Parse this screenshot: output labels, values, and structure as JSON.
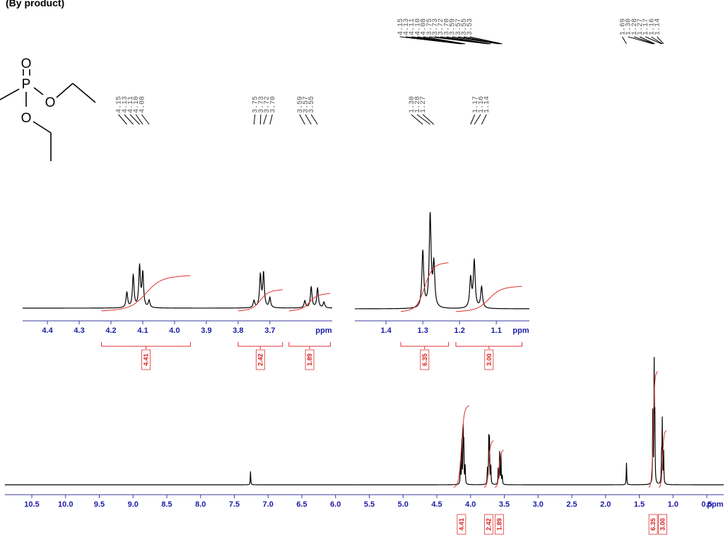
{
  "title": "(By product)",
  "structure": {
    "atoms": [
      "O",
      "P",
      "O",
      "O"
    ]
  },
  "chart_data": [
    {
      "type": "nmr",
      "xlabel": "ppm",
      "xlim": [
        10.9,
        0.25
      ],
      "ylim": [
        0,
        180
      ],
      "xticks": [
        10.5,
        {
          "value": 10,
          "label": "10.0"
        },
        9.5,
        {
          "value": 9,
          "label": "9.0"
        },
        8.5,
        {
          "value": 8,
          "label": "8.0"
        },
        7.5,
        {
          "value": 7,
          "label": "7.0"
        },
        6.5,
        {
          "value": 6,
          "label": "6.0"
        },
        5.5,
        {
          "value": 5,
          "label": "5.0"
        },
        4.5,
        {
          "value": 4,
          "label": "4.0"
        },
        3.5,
        {
          "value": 3,
          "label": "3.0"
        },
        2.5,
        {
          "value": 2,
          "label": "2.0"
        },
        1.5,
        {
          "value": 1,
          "label": "1.0"
        },
        0.5
      ],
      "peaks": {
        "x": [
          7.26,
          4.15,
          4.13,
          4.11,
          4.1,
          4.08,
          3.75,
          3.73,
          3.72,
          3.7,
          3.59,
          3.57,
          3.55,
          3.53,
          1.69,
          1.3,
          1.28,
          1.27,
          1.17,
          1.16,
          1.14
        ],
        "heights": [
          19,
          30,
          60,
          75,
          55,
          25,
          22,
          62,
          60,
          25,
          22,
          45,
          42,
          12,
          31,
          100,
          165,
          85,
          40,
          89,
          45
        ]
      },
      "peak_labels": [
        [
          {
            "value": 4.15,
            "label": "4.15"
          },
          {
            "value": 4.13,
            "label": "4.13"
          },
          {
            "value": 4.11,
            "label": "4.11"
          },
          {
            "value": 4.1,
            "label": "4.10"
          },
          {
            "value": 4.08,
            "label": "4.08"
          },
          {
            "value": 3.75,
            "label": "3.75"
          },
          {
            "value": 3.73,
            "label": "3.73"
          },
          {
            "value": 3.72,
            "label": "3.72"
          },
          {
            "value": 3.7,
            "label": "3.70"
          },
          {
            "value": 3.59,
            "label": "3.59"
          },
          {
            "value": 3.57,
            "label": "3.57"
          },
          {
            "value": 3.55,
            "label": "3.55"
          },
          {
            "value": 3.53,
            "label": "3.53"
          }
        ],
        [
          {
            "value": 1.69,
            "label": "1.69"
          },
          {
            "value": 1.3,
            "label": "1.30"
          },
          {
            "value": 1.28,
            "label": "1.28"
          },
          {
            "value": 1.27,
            "label": "1.27"
          },
          {
            "value": 1.17,
            "label": "1.17"
          },
          {
            "value": 1.16,
            "label": "1.16"
          },
          {
            "value": 1.14,
            "label": "1.14"
          }
        ]
      ],
      "integrals": {
        "from": [
          4.25,
          3.8,
          3.64,
          1.36,
          1.21
        ],
        "to": [
          4.02,
          3.66,
          3.51,
          1.23,
          1.1
        ],
        "values": [
          4.41,
          2.42,
          1.89,
          6.35,
          3.0
        ],
        "value_labels": [
          "4.41",
          "2.42",
          "1.89",
          "6.35",
          "3.00"
        ]
      }
    },
    {
      "type": "nmr",
      "xlabel": "ppm",
      "xlim": [
        4.478,
        3.504
      ],
      "ylim": [
        0,
        150
      ],
      "xticks": [
        4.4,
        4.3,
        4.2,
        4.1,
        {
          "value": 4,
          "label": "4.0"
        },
        3.9,
        3.8,
        3.7
      ],
      "peaks": {
        "x": [
          4.15,
          4.13,
          4.11,
          4.1,
          4.08,
          3.75,
          3.73,
          3.72,
          3.7,
          3.59,
          3.57,
          3.55,
          3.53
        ],
        "heights": [
          22,
          46,
          58,
          48,
          10,
          10,
          46,
          48,
          14,
          10,
          30,
          28,
          8
        ]
      },
      "peak_labels": [
        [
          {
            "value": 4.15,
            "label": "4.15"
          },
          {
            "value": 4.13,
            "label": "4.13"
          },
          {
            "value": 4.11,
            "label": "4.11"
          },
          {
            "value": 4.1,
            "label": "4.10"
          },
          {
            "value": 4.08,
            "label": "4.08"
          }
        ],
        [
          {
            "value": 3.75,
            "label": "3.75"
          },
          {
            "value": 3.73,
            "label": "3.73"
          },
          {
            "value": 3.72,
            "label": "3.72"
          },
          {
            "value": 3.7,
            "label": "3.70"
          }
        ],
        [
          {
            "value": 3.59,
            "label": "3.59"
          },
          {
            "value": 3.57,
            "label": "3.57"
          },
          {
            "value": 3.55,
            "label": "3.55"
          }
        ]
      ],
      "integrals": {
        "from": [
          4.23,
          3.8,
          3.64
        ],
        "to": [
          3.95,
          3.66,
          3.51
        ],
        "values": [
          4.41,
          2.42,
          1.89
        ],
        "value_labels": [
          "4.41",
          "2.42",
          "1.89"
        ]
      }
    },
    {
      "type": "nmr",
      "xlabel": "ppm",
      "xlim": [
        1.485,
        1.01
      ],
      "ylim": [
        0,
        150
      ],
      "xticks": [
        1.4,
        1.3,
        1.2,
        1.1
      ],
      "peaks": {
        "x": [
          1.3,
          1.28,
          1.27,
          1.17,
          1.16,
          1.14
        ],
        "heights": [
          80,
          130,
          60,
          42,
          66,
          30
        ]
      },
      "peak_labels": [
        [
          {
            "value": 1.3,
            "label": "1.30"
          },
          {
            "value": 1.28,
            "label": "1.28"
          },
          {
            "value": 1.27,
            "label": "1.27"
          }
        ],
        [
          {
            "value": 1.17,
            "label": "1.17"
          },
          {
            "value": 1.16,
            "label": "1.16"
          },
          {
            "value": 1.14,
            "label": "1.14"
          }
        ]
      ],
      "integrals": {
        "from": [
          1.36,
          1.21
        ],
        "to": [
          1.23,
          1.03
        ],
        "values": [
          6.35,
          3.0
        ],
        "value_labels": [
          "6.35",
          "3.00"
        ]
      }
    }
  ]
}
